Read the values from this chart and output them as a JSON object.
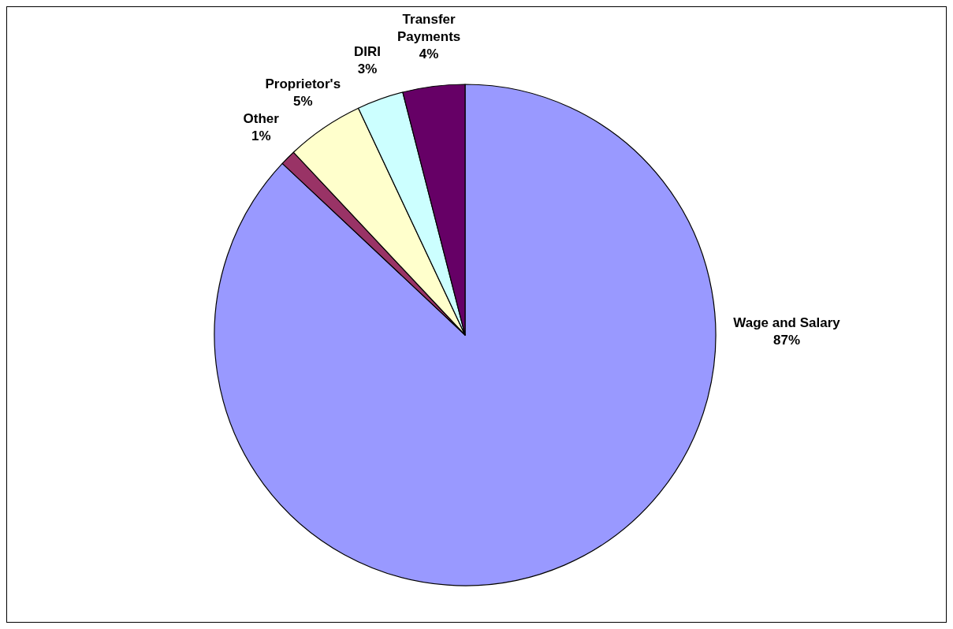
{
  "chart_data": {
    "type": "pie",
    "categories": [
      "Wage and Salary",
      "Other",
      "Proprietor's",
      "DIRI",
      "Transfer Payments"
    ],
    "values": [
      87,
      1,
      5,
      3,
      4
    ],
    "value_labels": [
      "87%",
      "1%",
      "5%",
      "3%",
      "4%"
    ],
    "colors": [
      "#9999ff",
      "#993366",
      "#ffffcc",
      "#ccffff",
      "#660066"
    ]
  }
}
